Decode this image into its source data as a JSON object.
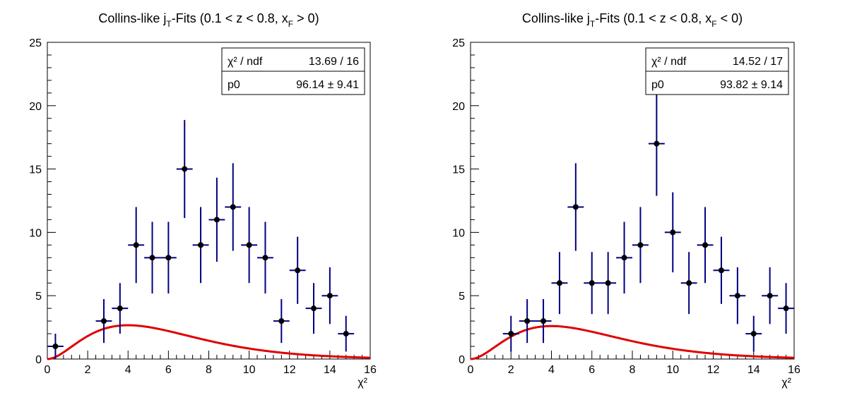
{
  "chart_data": [
    {
      "type": "scatter",
      "title": {
        "main": "Collins-like j",
        "sub": "T",
        "mid": "-Fits (0.1 < z < 0.8, x",
        "sub2": "F",
        "end": " > 0)"
      },
      "xlabel": "χ²",
      "xlim": [
        0,
        16
      ],
      "ylim": [
        0,
        25
      ],
      "xticks": [
        "0",
        "2",
        "4",
        "6",
        "8",
        "10",
        "12",
        "14",
        "16"
      ],
      "yticks": [
        "0",
        "5",
        "10",
        "15",
        "20",
        "25"
      ],
      "stats": {
        "chi2_label": "χ² / ndf",
        "chi2_value": "13.69 / 16",
        "p0_label": "p0",
        "p0_value": "96.14 ± 9.41"
      },
      "fit": {
        "p0": 96.14,
        "color": "#e00000"
      },
      "points": [
        {
          "x": 0.4,
          "y": 1,
          "err": 1.0
        },
        {
          "x": 2.8,
          "y": 3,
          "err": 1.73
        },
        {
          "x": 3.6,
          "y": 4,
          "err": 2.0
        },
        {
          "x": 4.4,
          "y": 9,
          "err": 3.0
        },
        {
          "x": 5.2,
          "y": 8,
          "err": 2.83
        },
        {
          "x": 6.0,
          "y": 8,
          "err": 2.83
        },
        {
          "x": 6.8,
          "y": 15,
          "err": 3.87
        },
        {
          "x": 7.6,
          "y": 9,
          "err": 3.0
        },
        {
          "x": 8.4,
          "y": 11,
          "err": 3.32
        },
        {
          "x": 9.2,
          "y": 12,
          "err": 3.46
        },
        {
          "x": 10.0,
          "y": 9,
          "err": 3.0
        },
        {
          "x": 10.8,
          "y": 8,
          "err": 2.83
        },
        {
          "x": 11.6,
          "y": 3,
          "err": 1.73
        },
        {
          "x": 12.4,
          "y": 7,
          "err": 2.65
        },
        {
          "x": 13.2,
          "y": 4,
          "err": 2.0
        },
        {
          "x": 14.0,
          "y": 5,
          "err": 2.24
        },
        {
          "x": 14.8,
          "y": 2,
          "err": 1.41
        }
      ],
      "bin_halfwidth": 0.4,
      "marker_color": "#000000",
      "error_color": "#000080"
    },
    {
      "type": "scatter",
      "title": {
        "main": "Collins-like j",
        "sub": "T",
        "mid": "-Fits (0.1 < z < 0.8, x",
        "sub2": "F",
        "end": " < 0)"
      },
      "xlabel": "χ²",
      "xlim": [
        0,
        16
      ],
      "ylim": [
        0,
        25
      ],
      "xticks": [
        "0",
        "2",
        "4",
        "6",
        "8",
        "10",
        "12",
        "14",
        "16"
      ],
      "yticks": [
        "0",
        "5",
        "10",
        "15",
        "20",
        "25"
      ],
      "stats": {
        "chi2_label": "χ² / ndf",
        "chi2_value": "14.52 / 17",
        "p0_label": "p0",
        "p0_value": "93.82 ± 9.14"
      },
      "fit": {
        "p0": 93.82,
        "color": "#e00000"
      },
      "points": [
        {
          "x": 2.0,
          "y": 2,
          "err": 1.41
        },
        {
          "x": 2.8,
          "y": 3,
          "err": 1.73
        },
        {
          "x": 3.6,
          "y": 3,
          "err": 1.73
        },
        {
          "x": 4.4,
          "y": 6,
          "err": 2.45
        },
        {
          "x": 5.2,
          "y": 12,
          "err": 3.46
        },
        {
          "x": 6.0,
          "y": 6,
          "err": 2.45
        },
        {
          "x": 6.8,
          "y": 6,
          "err": 2.45
        },
        {
          "x": 7.6,
          "y": 8,
          "err": 2.83
        },
        {
          "x": 8.4,
          "y": 9,
          "err": 3.0
        },
        {
          "x": 9.2,
          "y": 17,
          "err": 4.12
        },
        {
          "x": 10.0,
          "y": 10,
          "err": 3.16
        },
        {
          "x": 10.8,
          "y": 6,
          "err": 2.45
        },
        {
          "x": 11.6,
          "y": 9,
          "err": 3.0
        },
        {
          "x": 12.4,
          "y": 7,
          "err": 2.65
        },
        {
          "x": 13.2,
          "y": 5,
          "err": 2.24
        },
        {
          "x": 14.0,
          "y": 2,
          "err": 1.41
        },
        {
          "x": 14.8,
          "y": 5,
          "err": 2.24
        },
        {
          "x": 15.6,
          "y": 4,
          "err": 2.0
        }
      ],
      "bin_halfwidth": 0.4,
      "marker_color": "#000000",
      "error_color": "#000080"
    }
  ]
}
